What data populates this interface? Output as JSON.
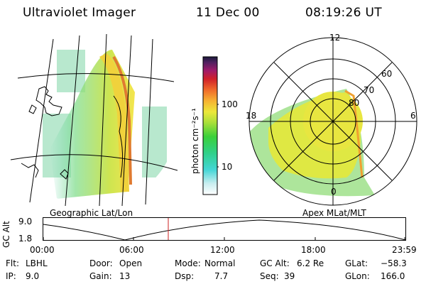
{
  "header": {
    "instrument": "Ultraviolet Imager",
    "date": "11 Dec 00",
    "time": "08:19:26 UT"
  },
  "left_panel": {
    "label": "Geographic Lat/Lon"
  },
  "right_panel": {
    "label": "Apex MLat/MLT",
    "mlt_labels": {
      "top": "12",
      "left": "18",
      "right": "6",
      "bottom": "0"
    },
    "lat_labels": [
      "60",
      "70",
      "80"
    ]
  },
  "colorbar": {
    "unit_label": "photon cm⁻²s⁻¹",
    "ticks": [
      "100",
      "10"
    ],
    "scale": "log"
  },
  "orbit_plot": {
    "ylabel": "GC Alt",
    "ytick_top": "9.0",
    "ytick_bottom": "1.8",
    "x_ticks": [
      "00:00",
      "06:00",
      "12:00",
      "18:00",
      "23:59"
    ],
    "current_time_marker_color": "#cc2222"
  },
  "info": {
    "flt_label": "Flt:",
    "flt": "LBHL",
    "ip_label": "IP:",
    "ip": "9.0",
    "door_label": "Door:",
    "door": "Open",
    "gain_label": "Gain:",
    "gain": "13",
    "mode_label": "Mode:",
    "mode": "Normal",
    "dsp_label": "Dsp:",
    "dsp": "7.7",
    "gcalt_label": "GC Alt:",
    "gcalt": "6.2 Re",
    "seq_label": "Seq:",
    "seq": "39",
    "glat_label": "GLat:",
    "glat": "−58.3",
    "glon_label": "GLon:",
    "glon": "166.0"
  }
}
